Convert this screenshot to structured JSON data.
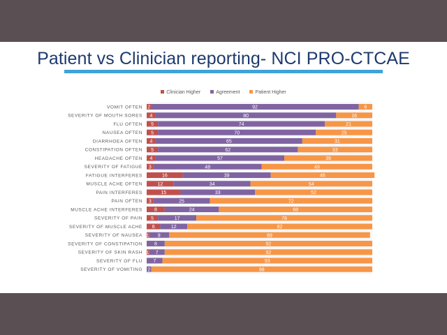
{
  "slide": {
    "title": "Patient vs Clinician reporting- NCI PRO-CTCAE"
  },
  "chart_data": {
    "type": "bar",
    "orientation": "horizontal",
    "stacked": true,
    "percent_stacked": true,
    "title": "",
    "xlabel": "",
    "ylabel": "",
    "xlim": [
      0,
      100
    ],
    "grid": false,
    "legend_position": "top",
    "legend": [
      "Clinician Higher",
      "Agreement",
      "Patient Higher"
    ],
    "colors": {
      "Clinician Higher": "#c0504d",
      "Agreement": "#8064a2",
      "Patient Higher": "#f79646"
    },
    "categories": [
      "VOMIT OFTEN",
      "SEVERITY OF MOUTH SORES",
      "FLU OFTEN",
      "NAUSEA OFTEN",
      "DIARRHOEA OFTEN",
      "CONSTIPATION OFTEN",
      "HEADACHE OFTEN",
      "SEVERITY OF FATIGUE",
      "FATIGUE INTERFERES",
      "MUSCLE ACHE OFTEN",
      "PAIN INTERFERES",
      "PAIN OFTEN",
      "MUSCLE ACHE INTERFERES",
      "SEVERITY OF PAIN",
      "SEVERITY OF MUSCLE ACHE",
      "SEVERITY OF NAUSEA",
      "SEVERITY OF CONSTIPATION",
      "SEVERITY OF SKIN RASH",
      "SEVERITY OF FLU",
      "SEVERITY OF VOMITING"
    ],
    "series": [
      {
        "name": "Clinician Higher",
        "values": [
          2,
          4,
          5,
          5,
          4,
          5,
          4,
          3,
          16,
          12,
          15,
          3,
          8,
          5,
          6,
          1,
          0,
          1,
          0,
          0
        ]
      },
      {
        "name": "Agreement",
        "values": [
          92,
          80,
          74,
          70,
          65,
          62,
          57,
          48,
          39,
          34,
          33,
          25,
          24,
          17,
          12,
          9,
          8,
          7,
          7,
          2
        ]
      },
      {
        "name": "Patient Higher",
        "values": [
          6,
          16,
          21,
          25,
          31,
          33,
          39,
          49,
          46,
          54,
          52,
          72,
          68,
          78,
          82,
          89,
          92,
          92,
          93,
          98
        ]
      }
    ]
  }
}
